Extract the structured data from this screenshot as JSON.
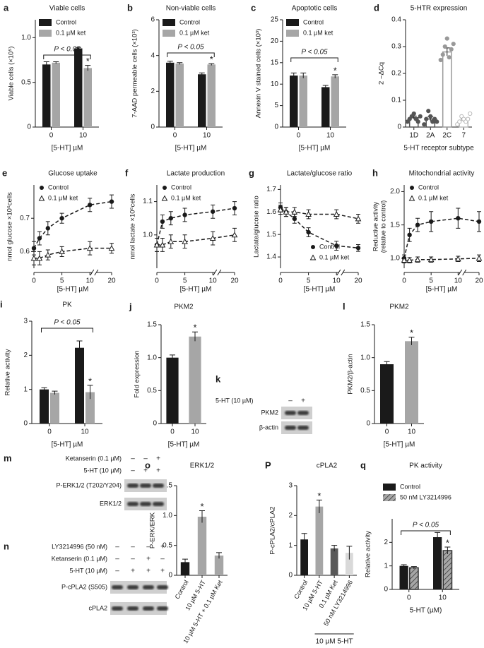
{
  "chart_data": [
    {
      "type": "bar",
      "panel": "a",
      "title": "Viable cells",
      "ylabel": "Viable cells (×10⁵)",
      "xlabel": "[5-HT] µM",
      "categories": [
        "0",
        "10"
      ],
      "series": [
        {
          "name": "Control",
          "color": "#1a1a1a",
          "values": [
            0.7,
            0.88
          ],
          "errors": [
            0.03,
            0.01
          ]
        },
        {
          "name": "0.1 µM ket",
          "color": "#a6a6a6",
          "values": [
            0.72,
            0.66
          ],
          "errors": [
            0.01,
            0.03
          ]
        }
      ],
      "ylim": [
        0,
        1.2
      ],
      "yticks": [
        0,
        0.5,
        {
          "value": 1,
          "label": "1.0"
        }
      ],
      "legend": "top-left",
      "annotations": [
        "P < 0.05",
        "*"
      ]
    },
    {
      "type": "bar",
      "panel": "b",
      "title": "Non-viable cells",
      "ylabel": "7-AAD permeable cells (×10³)",
      "xlabel": "[5-HT] µM",
      "categories": [
        "0",
        "10"
      ],
      "series": [
        {
          "name": "Control",
          "color": "#1a1a1a",
          "values": [
            3.6,
            2.95
          ],
          "errors": [
            0.08,
            0.08
          ]
        },
        {
          "name": "0.1 µM ket",
          "color": "#a6a6a6",
          "values": [
            3.55,
            3.5
          ],
          "errors": [
            0.05,
            0.05
          ]
        }
      ],
      "ylim": [
        0,
        6
      ],
      "yticks": [
        0,
        2,
        4,
        6
      ],
      "legend": "top-left",
      "annotations": [
        "P < 0.05",
        "*"
      ]
    },
    {
      "type": "bar",
      "panel": "c",
      "title": "Apoptotic cells",
      "ylabel": "Annexin V stained cells (×10³)",
      "xlabel": "[5-HT] µM",
      "categories": [
        "0",
        "10"
      ],
      "series": [
        {
          "name": "Control",
          "color": "#1a1a1a",
          "values": [
            12,
            9.3
          ],
          "errors": [
            0.6,
            0.4
          ]
        },
        {
          "name": "0.1 µM ket",
          "color": "#a6a6a6",
          "values": [
            12,
            11.8
          ],
          "errors": [
            0.6,
            0.4
          ]
        }
      ],
      "ylim": [
        0,
        25
      ],
      "yticks": [
        0,
        5,
        10,
        15,
        20,
        25
      ],
      "legend": "top-left",
      "annotations": [
        "P < 0.05",
        "*"
      ]
    },
    {
      "type": "bar",
      "panel": "d",
      "title": "5-HTR expression",
      "ylabel": "2 −ΔCq",
      "xlabel": "5-HT receptor subtype",
      "categories": [
        "1D",
        "2A",
        "2C",
        "7"
      ],
      "series": [
        {
          "colors": [
            "#555555",
            "#555555",
            "#999999",
            "#bbbbbb"
          ],
          "outline": true,
          "values": [
            0.035,
            0.03,
            0.28,
            0.025
          ],
          "errors": [
            0.006,
            0.008,
            0.015,
            0.005
          ],
          "points": [
            [
              0.02,
              0.03,
              0.04,
              0.05,
              0.03,
              0.02,
              0.04
            ],
            [
              0.01,
              0.03,
              0.06,
              0.04,
              0.02,
              0.03,
              0.02
            ],
            [
              0.25,
              0.27,
              0.3,
              0.33,
              0.26,
              0.29,
              0.31
            ],
            [
              0.01,
              0.02,
              0.04,
              0.03,
              0.02,
              0.03,
              0.05
            ]
          ]
        }
      ],
      "ylim": [
        0,
        0.4
      ],
      "yticks": [
        0,
        0.1,
        0.2,
        0.3,
        0.4
      ]
    },
    {
      "type": "line",
      "panel": "e",
      "title": "Glucose uptake",
      "ylabel": "nmol glucose ×10⁶cells",
      "xlabel": "[5-HT] µM",
      "x": [
        0,
        1,
        2.5,
        5,
        10,
        20
      ],
      "series": [
        {
          "name": "Control",
          "color": "#1a1a1a",
          "marker": "circle",
          "values": [
            0.61,
            0.64,
            0.67,
            0.7,
            0.74,
            0.75
          ],
          "errors": [
            0.02,
            0.02,
            0.02,
            0.015,
            0.02,
            0.02
          ]
        },
        {
          "name": "0.1 µM ket",
          "color": "#1a1a1a",
          "marker": "triangle",
          "values": [
            0.58,
            0.58,
            0.59,
            0.6,
            0.61,
            0.61
          ],
          "errors": [
            0.02,
            0.02,
            0.015,
            0.015,
            0.02,
            0.015
          ]
        }
      ],
      "xlim": [
        0,
        20
      ],
      "xticks": [
        0,
        5,
        10,
        20
      ],
      "ylim": [
        0.55,
        0.8
      ],
      "yticks": [
        0.6,
        0.7
      ],
      "legend": "top-left"
    },
    {
      "type": "line",
      "panel": "f",
      "title": "Lactate production",
      "ylabel": "nmol lactate ×10⁶cells",
      "xlabel": "[5-HT] µM",
      "x": [
        0,
        1,
        2.5,
        5,
        10,
        20
      ],
      "series": [
        {
          "name": "Control",
          "color": "#1a1a1a",
          "marker": "circle",
          "values": [
            0.97,
            1.04,
            1.05,
            1.06,
            1.07,
            1.08
          ],
          "errors": [
            0.02,
            0.02,
            0.02,
            0.02,
            0.02,
            0.02
          ]
        },
        {
          "name": "0.1 µM ket",
          "color": "#1a1a1a",
          "marker": "triangle",
          "values": [
            0.97,
            0.97,
            0.98,
            0.98,
            0.99,
            1.0
          ],
          "errors": [
            0.02,
            0.02,
            0.02,
            0.02,
            0.02,
            0.02
          ]
        }
      ],
      "xlim": [
        0,
        20
      ],
      "xticks": [
        0,
        5,
        10,
        20
      ],
      "ylim": [
        0.9,
        1.15
      ],
      "yticks": [
        {
          "value": 1,
          "label": "1.0"
        },
        1.1
      ],
      "legend": "top-left"
    },
    {
      "type": "line",
      "panel": "g",
      "title": "Lactate/glucose ratio",
      "ylabel": "Lactate/glucose ratio",
      "xlabel": "[5-HT] µM",
      "x": [
        0,
        1,
        2.5,
        5,
        10,
        20
      ],
      "series": [
        {
          "name": "Control",
          "color": "#1a1a1a",
          "marker": "circle",
          "values": [
            1.62,
            1.6,
            1.57,
            1.51,
            1.45,
            1.44
          ],
          "errors": [
            0.02,
            0.02,
            0.02,
            0.02,
            0.02,
            0.015
          ]
        },
        {
          "name": "0.1 µM ket",
          "color": "#1a1a1a",
          "marker": "triangle",
          "values": [
            1.61,
            1.6,
            1.6,
            1.59,
            1.59,
            1.57
          ],
          "errors": [
            0.02,
            0.02,
            0.02,
            0.02,
            0.02,
            0.02
          ]
        }
      ],
      "xlim": [
        0,
        20
      ],
      "xticks": [
        0,
        5,
        10,
        20
      ],
      "ylim": [
        1.35,
        1.72
      ],
      "yticks": [
        1.4,
        1.5,
        1.6,
        1.7
      ],
      "legend": "bottom-right"
    },
    {
      "type": "line",
      "panel": "h",
      "title": "Mitochondrial activity",
      "ylabel": [
        "Reductive activity",
        "(relative to control)"
      ],
      "xlabel": "[5-HT] µM",
      "x": [
        0,
        1,
        2.5,
        5,
        10,
        20
      ],
      "series": [
        {
          "name": "Control",
          "color": "#1a1a1a",
          "marker": "circle",
          "values": [
            1.0,
            1.35,
            1.5,
            1.55,
            1.6,
            1.55
          ],
          "errors": [
            0.05,
            0.1,
            0.1,
            0.15,
            0.15,
            0.15
          ]
        },
        {
          "name": "0.1 µM ket",
          "color": "#1a1a1a",
          "marker": "triangle",
          "values": [
            0.97,
            0.97,
            0.98,
            0.98,
            0.99,
            1.0
          ],
          "errors": [
            0.04,
            0.04,
            0.04,
            0.04,
            0.04,
            0.05
          ]
        }
      ],
      "xlim": [
        0,
        20
      ],
      "xticks": [
        0,
        5,
        10,
        20
      ],
      "ylim": [
        0.85,
        2.1
      ],
      "yticks": [
        {
          "value": 1,
          "label": "1.0"
        },
        1.5,
        {
          "value": 2,
          "label": "2.0"
        }
      ],
      "legend": "top-left"
    },
    {
      "type": "bar",
      "panel": "i",
      "title": "PK",
      "ylabel": "Relative activity",
      "xlabel": "[5-HT] µM",
      "categories": [
        "0",
        "10"
      ],
      "series": [
        {
          "color": "#1a1a1a",
          "values": [
            1.0,
            2.22
          ],
          "errors": [
            0.05,
            0.2
          ]
        },
        {
          "color": "#a6a6a6",
          "values": [
            0.9,
            0.92
          ],
          "errors": [
            0.05,
            0.2
          ]
        }
      ],
      "ylim": [
        0,
        3
      ],
      "yticks": [
        0,
        1,
        2,
        3
      ],
      "annotations": [
        "P < 0.05",
        "*"
      ]
    },
    {
      "type": "bar",
      "panel": "j",
      "title": "PKM2",
      "ylabel": "Fold expression",
      "xlabel": "[5-HT] µM",
      "categories": [
        "0",
        "10"
      ],
      "series": [
        {
          "colors": [
            "#1a1a1a",
            "#a6a6a6"
          ],
          "values": [
            1.0,
            1.32
          ],
          "errors": [
            0.04,
            0.07
          ]
        }
      ],
      "ylim": [
        0,
        1.5
      ],
      "yticks": [
        0,
        0.5,
        {
          "value": 1,
          "label": "1.0"
        },
        1.5
      ],
      "annotations": [
        "*"
      ]
    },
    {
      "type": "bar",
      "panel": "l",
      "title": "PKM2",
      "ylabel": "PKM2/β-actin",
      "xlabel": "[5-HT] µM",
      "categories": [
        "0",
        "10"
      ],
      "series": [
        {
          "colors": [
            "#1a1a1a",
            "#a6a6a6"
          ],
          "values": [
            0.9,
            1.25
          ],
          "errors": [
            0.04,
            0.06
          ]
        }
      ],
      "ylim": [
        0,
        1.5
      ],
      "yticks": [
        0,
        0.5,
        {
          "value": 1,
          "label": "1.0"
        },
        1.5
      ],
      "annotations": [
        "*"
      ]
    },
    {
      "type": "bar",
      "panel": "o",
      "title": "ERK1/2",
      "ylabel": "P-ERK/ERK",
      "categories": [
        "Control",
        "10 µM 5-HT",
        "10 µM 5-HT + 0.1 µM Ket"
      ],
      "series": [
        {
          "colors": [
            "#1a1a1a",
            "#a6a6a6",
            "#a6a6a6"
          ],
          "values": [
            0.22,
            0.98,
            0.33
          ],
          "errors": [
            0.05,
            0.1,
            0.05
          ]
        }
      ],
      "ylim": [
        0,
        1.5
      ],
      "yticks": [
        0,
        0.5,
        {
          "value": 1,
          "label": "1.0"
        },
        1.5
      ],
      "annotations": [
        "*"
      ]
    },
    {
      "type": "bar",
      "panel": "P",
      "title": "cPLA2",
      "ylabel": "P-cPLA2/cPLA2",
      "categories": [
        "Control",
        "10 µM 5-HT",
        "0.1 µM Ket",
        "50 nM LY3214996"
      ],
      "series": [
        {
          "colors": [
            "#1a1a1a",
            "#a6a6a6",
            "#595959",
            "#d9d9d9"
          ],
          "values": [
            1.2,
            2.3,
            0.9,
            0.75
          ],
          "errors": [
            0.2,
            0.22,
            0.1,
            0.22
          ]
        }
      ],
      "ylim": [
        0,
        3
      ],
      "yticks": [
        0,
        1,
        2,
        3
      ],
      "annotations": [
        "*",
        "10 µM 5-HT"
      ]
    },
    {
      "type": "bar",
      "panel": "q",
      "title": "PK activity",
      "ylabel": "Relative activity",
      "xlabel": "5-HT (µM)",
      "categories": [
        "0",
        "10"
      ],
      "series": [
        {
          "name": "Control",
          "color": "#1a1a1a",
          "values": [
            1.0,
            2.22
          ],
          "errors": [
            0.05,
            0.2
          ]
        },
        {
          "name": "50 nM LY3214996",
          "color": "#a6a6a6",
          "hatch": true,
          "values": [
            0.92,
            1.65
          ],
          "errors": [
            0.05,
            0.15
          ]
        }
      ],
      "ylim": [
        0,
        3
      ],
      "yticks": [
        0,
        1,
        2
      ],
      "legend": "top-left",
      "annotations": [
        "P < 0.05",
        "*"
      ]
    }
  ],
  "blots": [
    {
      "panel": "k",
      "rows": [
        {
          "label": "5-HT (10 µM)",
          "lanes": [
            "–",
            "+"
          ]
        }
      ],
      "bands": [
        "PKM2",
        "β-actin"
      ]
    },
    {
      "panel": "m",
      "rows": [
        {
          "label": "Ketanserin (0.1 µM)",
          "lanes": [
            "–",
            "–",
            "+"
          ]
        },
        {
          "label": "5-HT (10 µM)",
          "lanes": [
            "–",
            "+",
            "+"
          ]
        }
      ],
      "bands": [
        "P-ERK1/2 (T202/Y204)",
        "ERK1/2"
      ]
    },
    {
      "panel": "n",
      "rows": [
        {
          "label": "LY3214996 (50 nM)",
          "lanes": [
            "–",
            "–",
            "–",
            "+"
          ]
        },
        {
          "label": "Ketanserin (0.1 µM)",
          "lanes": [
            "–",
            "–",
            "+",
            "–"
          ]
        },
        {
          "label": "5-HT (10 µM)",
          "lanes": [
            "–",
            "+",
            "+",
            "+"
          ]
        }
      ],
      "bands": [
        "P-cPLA2 (S505)",
        "cPLA2"
      ]
    }
  ]
}
